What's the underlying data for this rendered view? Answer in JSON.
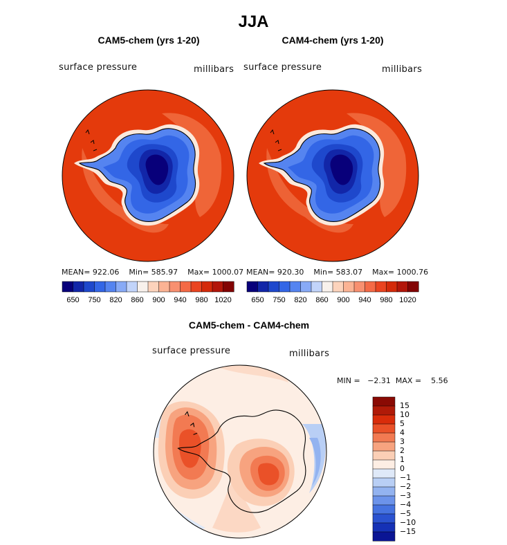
{
  "main_title": "JJA",
  "panels": [
    {
      "title": "CAM5-chem (yrs 1-20)",
      "variable": "surface pressure",
      "units": "millibars",
      "stats": {
        "mean_label": "MEAN=",
        "mean": "922.06",
        "min_label": "Min=",
        "min": "585.97",
        "max_label": "Max=",
        "max": "1000.07"
      }
    },
    {
      "title": "CAM4-chem (yrs 1-20)",
      "variable": "surface pressure",
      "units": "millibars",
      "stats": {
        "mean_label": "MEAN=",
        "mean": "920.30",
        "min_label": "Min=",
        "min": "583.07",
        "max_label": "Max=",
        "max": "1000.76"
      }
    },
    {
      "title": "CAM5-chem - CAM4-chem",
      "variable": "surface pressure",
      "units": "millibars",
      "stats": {
        "min_label": "MIN =",
        "min": "−2.31",
        "max_label": "MAX =",
        "max": "5.56"
      }
    }
  ],
  "colors": {
    "abs_colorbar": [
      "#08007a",
      "#1226a8",
      "#1e48cc",
      "#3366e6",
      "#5584f0",
      "#88aaf6",
      "#c2d4fa",
      "#f8f1ec",
      "#fcd3bc",
      "#fbb394",
      "#f89070",
      "#f46a46",
      "#ea4420",
      "#d42a0a",
      "#b2160a",
      "#820404"
    ],
    "diff_colorbar_top_to_bottom": [
      "#8a0a04",
      "#b01a08",
      "#d92c0a",
      "#ea5128",
      "#f27a52",
      "#f7a37f",
      "#fbcfb6",
      "#fdeee4",
      "#dfe9f8",
      "#b9cff5",
      "#93b3f0",
      "#6c93ea",
      "#4673e0",
      "#2a52d0",
      "#1531b6",
      "#0a1594"
    ],
    "ocean_abs": "#e43a0c",
    "ring_abs": "#ef6a3d"
  },
  "chart_data": [
    {
      "type": "contour-map",
      "title": "CAM5-chem (yrs 1-20)",
      "colorbar_ticks": [
        "650",
        "750",
        "820",
        "860",
        "900",
        "940",
        "980",
        "1020"
      ],
      "mean": 922.06,
      "min": 585.97,
      "max": 1000.07
    },
    {
      "type": "contour-map",
      "title": "CAM4-chem (yrs 1-20)",
      "colorbar_ticks": [
        "650",
        "750",
        "820",
        "860",
        "900",
        "940",
        "980",
        "1020"
      ],
      "mean": 920.3,
      "min": 583.07,
      "max": 1000.76
    },
    {
      "type": "contour-map",
      "title": "CAM5-chem - CAM4-chem",
      "colorbar_ticks": [
        "15",
        "10",
        "5",
        "4",
        "3",
        "2",
        "1",
        "0",
        "−1",
        "−2",
        "−3",
        "−4",
        "−5",
        "−10",
        "−15"
      ],
      "min": -2.31,
      "max": 5.56
    }
  ]
}
